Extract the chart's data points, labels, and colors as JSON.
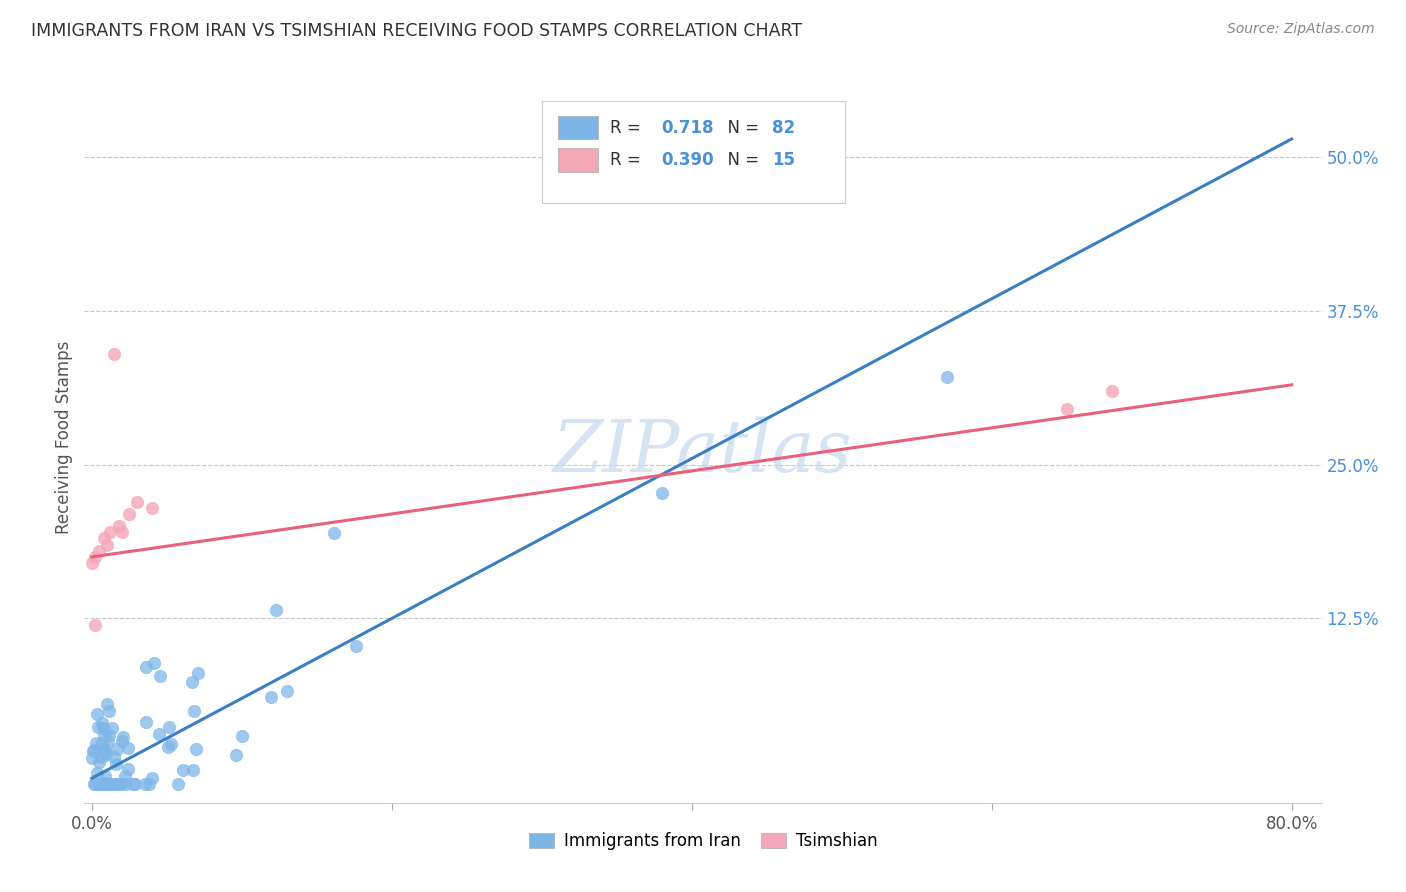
{
  "title": "IMMIGRANTS FROM IRAN VS TSIMSHIAN RECEIVING FOOD STAMPS CORRELATION CHART",
  "source": "Source: ZipAtlas.com",
  "ylabel_label": "Receiving Food Stamps",
  "xlim": [
    -0.005,
    0.82
  ],
  "ylim": [
    -0.025,
    0.57
  ],
  "xticks": [
    0.0,
    0.2,
    0.4,
    0.6,
    0.8
  ],
  "xtick_labels": [
    "0.0%",
    "",
    "",
    "",
    "80.0%"
  ],
  "ytick_vals": [
    0.125,
    0.25,
    0.375,
    0.5
  ],
  "ytick_labels": [
    "12.5%",
    "25.0%",
    "37.5%",
    "50.0%"
  ],
  "legend_R1": "0.718",
  "legend_N1": "82",
  "legend_R2": "0.390",
  "legend_N2": "15",
  "legend_label1": "Immigrants from Iran",
  "legend_label2": "Tsimshian",
  "color_blue": "#7EB6E8",
  "color_pink": "#F4A7B9",
  "color_blue_line": "#3A7FC1",
  "color_pink_line": "#E8607A",
  "color_blue_text": "#4A90D9",
  "color_title": "#333333",
  "color_source": "#888888",
  "color_grid": "#BBBBBB",
  "watermark_text": "ZIPatlas",
  "watermark_color": "#C5D8ED",
  "blue_line_x0": 0.0,
  "blue_line_y0": -0.005,
  "blue_line_x1": 0.8,
  "blue_line_y1": 0.515,
  "pink_line_x0": 0.0,
  "pink_line_y0": 0.175,
  "pink_line_x1": 0.8,
  "pink_line_y1": 0.315
}
